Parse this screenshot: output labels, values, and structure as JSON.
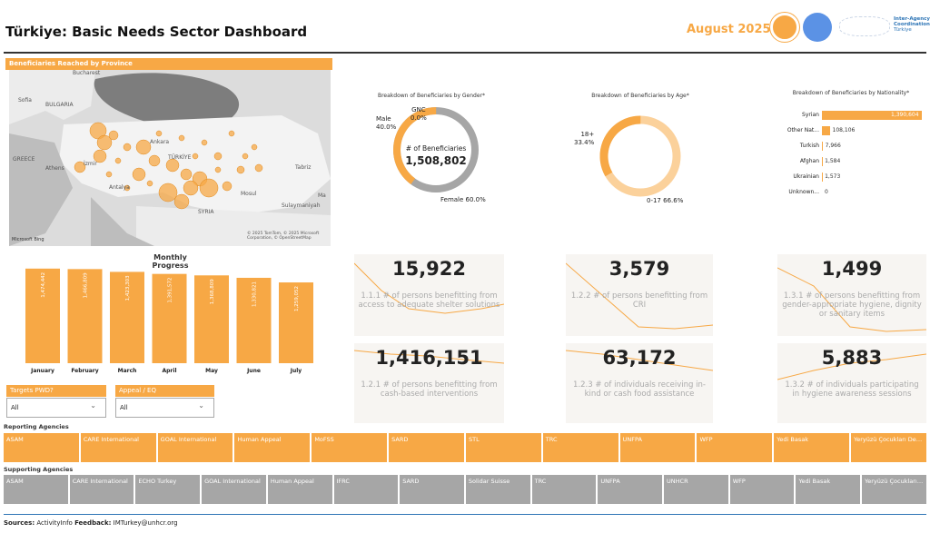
{
  "header": {
    "title": "Türkiye: Basic Needs Sector Dashboard",
    "month": "August 2025",
    "logo_text": [
      "Inter-Agency",
      "Coordination",
      "Türkiye"
    ]
  },
  "map": {
    "title": "Beneficiaries Reached by Province",
    "labels": {
      "bucharest": "Bucharest",
      "sofia": "Sofia",
      "bulgaria": "BULGARIA",
      "greece": "GREECE",
      "athens": "Athens",
      "ankara": "Ankara",
      "turkiye": "TÜRKİYE",
      "izmir": "İzmir",
      "antalya": "Antalya",
      "syria": "SYRIA",
      "tabriz": "Tabriz",
      "mosul": "Mosul",
      "sulaymaniyah": "Sulaymaniyah",
      "ma": "Ma"
    },
    "attribution": "© 2025 TomTom, © 2025 Microsoft Corporation, © OpenStreetMap",
    "brand": "Microsoft Bing"
  },
  "gender": {
    "title": "Breakdown of Beneficiaries by Gender*",
    "center_label": "# of Beneficiaries",
    "center_value": "1,508,802",
    "gnc": "GNC",
    "gnc_pct": "0.0%",
    "male": "Male",
    "male_pct": "40.0%",
    "female": "Female 60.0%",
    "male_share": 0.4,
    "female_share": 0.6
  },
  "age": {
    "title": "Breakdown of Beneficiaries by Age*",
    "older": "18+",
    "older_pct": "33.4%",
    "younger": "0-17 66.6%",
    "older_share": 0.334
  },
  "nationality": {
    "title": "Breakdown of Beneficiaries by Nationality*",
    "items": [
      {
        "label": "Syrian",
        "text": "1,390,604",
        "value": 1390604
      },
      {
        "label": "Other Nat...",
        "text": "108,106",
        "value": 108106
      },
      {
        "label": "Turkish",
        "text": "7,966",
        "value": 7966
      },
      {
        "label": "Afghan",
        "text": "1,584",
        "value": 1584
      },
      {
        "label": "Ukrainian",
        "text": "1,573",
        "value": 1573
      },
      {
        "label": "Unknown...",
        "text": "0",
        "value": 0
      }
    ]
  },
  "chart_data": {
    "type": "bar",
    "title": "Monthly Progress",
    "categories": [
      "January",
      "February",
      "March",
      "April",
      "May",
      "June",
      "July"
    ],
    "labels": [
      "1,474,442",
      "1,466,809",
      "1,423,303",
      "1,391,572",
      "1,368,809",
      "1,330,821",
      "1,259,052"
    ],
    "values": [
      1474442,
      1466809,
      1423303,
      1391572,
      1368809,
      1330821,
      1259052
    ],
    "ylim": [
      0,
      1500000
    ]
  },
  "kpis": [
    {
      "value": "15,922",
      "label": "1.1.1 # of persons benefitting from access to adequate shelter solutions"
    },
    {
      "value": "3,579",
      "label": "1.2.2 # of persons benefitting from CRI"
    },
    {
      "value": "1,499",
      "label": "1.3.1 # of persons benefitting from gender-appropriate hygiene, dignity or sanitary items"
    },
    {
      "value": "1,416,151",
      "label": "1.2.1 # of persons benefitting from cash-based interventions"
    },
    {
      "value": "63,172",
      "label": "1.2.3 # of individuals receiving in-kind or cash food assistance"
    },
    {
      "value": "5,883",
      "label": "1.3.2 # of individuals participating in hygiene awareness sessions"
    }
  ],
  "slicers": [
    {
      "title": "Targets PWD?",
      "value": "All"
    },
    {
      "title": "Appeal / EQ",
      "value": "All"
    }
  ],
  "reporting": {
    "title": "Reporting Agencies",
    "items": [
      "ASAM",
      "CARE International",
      "GOAL International",
      "Human Appeal",
      "MoFSS",
      "SARD",
      "STL",
      "TRC",
      "UNFPA",
      "WFP",
      "Yedi Basak",
      "Yeryüzü Çocukları Der..."
    ]
  },
  "supporting": {
    "title": "Supporting Agencies",
    "items": [
      "ASAM",
      "CARE International",
      "ECHO Turkey",
      "GOAL International",
      "Human Appeal",
      "IFRC",
      "SARD",
      "Solidar Suisse",
      "TRC",
      "UNFPA",
      "UNHCR",
      "WFP",
      "Yedi Basak",
      "Yeryüzü Çocukları Der..."
    ]
  },
  "footer": {
    "sources_label": "Sources:",
    "sources": "ActivityInfo",
    "feedback_label": "Feedback:",
    "feedback": "IMTurkey@unhcr.org"
  },
  "colors": {
    "accent": "#F7A845",
    "light": "#FBD19B",
    "grey": "#A6A6A6"
  }
}
